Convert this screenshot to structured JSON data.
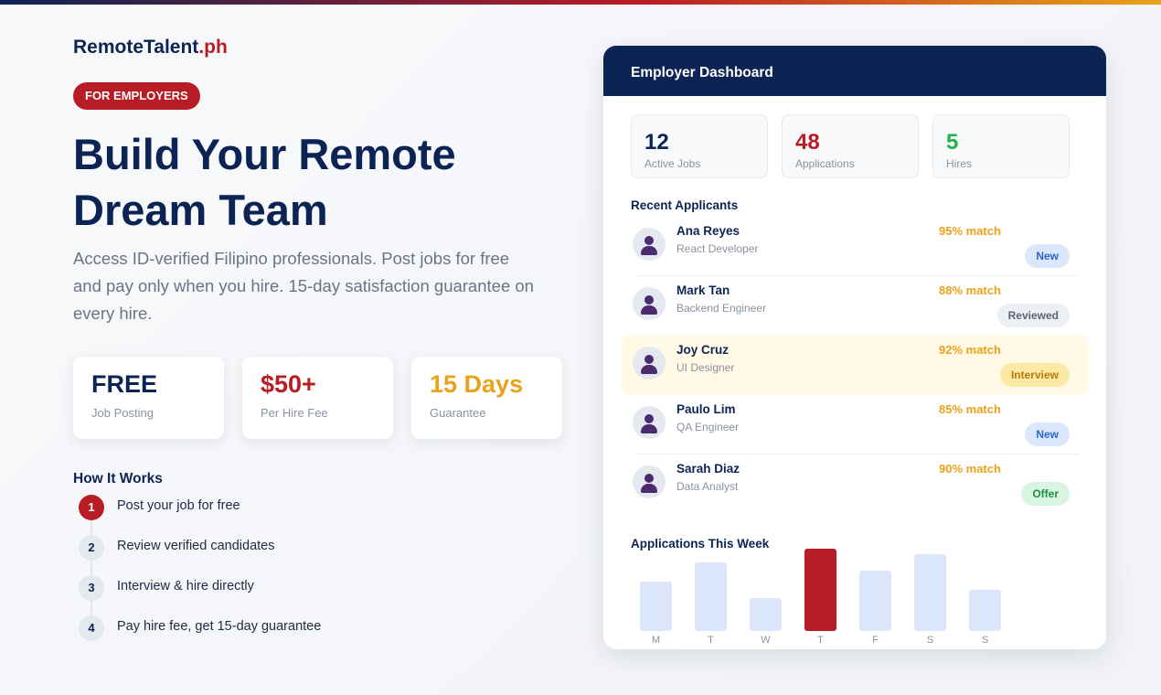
{
  "brand": {
    "name": "RemoteTalent",
    "suffix": ".ph"
  },
  "badge": "FOR EMPLOYERS",
  "headline": "Build Your Remote Dream Team",
  "subtext": "Access ID-verified Filipino professionals. Post jobs for free and pay only when you hire. 15-day satisfaction guarantee on every hire.",
  "stats": [
    {
      "value": "FREE",
      "label": "Job Posting",
      "color": "#0c2454"
    },
    {
      "value": "$50+",
      "label": "Per Hire Fee",
      "color": "#b81c25"
    },
    {
      "value": "15 Days",
      "label": "Guarantee",
      "color": "#e9a21a"
    }
  ],
  "how_it_works": {
    "title": "How It Works",
    "steps": [
      {
        "num": "1",
        "text": "Post your job for free"
      },
      {
        "num": "2",
        "text": "Review verified candidates"
      },
      {
        "num": "3",
        "text": "Interview & hire directly"
      },
      {
        "num": "4",
        "text": "Pay hire fee, get 15-day guarantee"
      }
    ]
  },
  "dashboard": {
    "title": "Employer Dashboard",
    "metrics": [
      {
        "value": "12",
        "label": "Active Jobs",
        "color": "#0c2454"
      },
      {
        "value": "48",
        "label": "Applications",
        "color": "#b81c25"
      },
      {
        "value": "5",
        "label": "Hires",
        "color": "#22b24c"
      }
    ],
    "recent_title": "Recent Applicants",
    "applicants": [
      {
        "name": "Ana Reyes",
        "role": "React Developer",
        "match": "95% match",
        "status": "New",
        "status_bg": "#dbe7fc",
        "status_color": "#2d64c8"
      },
      {
        "name": "Mark Tan",
        "role": "Backend Engineer",
        "match": "88% match",
        "status": "Reviewed",
        "status_bg": "#eceff3",
        "status_color": "#5b6476"
      },
      {
        "name": "Joy Cruz",
        "role": "UI Designer",
        "match": "92% match",
        "status": "Interview",
        "status_bg": "#fde9a6",
        "status_color": "#b7790d"
      },
      {
        "name": "Paulo Lim",
        "role": "QA Engineer",
        "match": "85% match",
        "status": "New",
        "status_bg": "#dbe7fc",
        "status_color": "#2d64c8"
      },
      {
        "name": "Sarah Diaz",
        "role": "Data Analyst",
        "match": "90% match",
        "status": "Offer",
        "status_bg": "#d7f5df",
        "status_color": "#1f8f44"
      }
    ],
    "week_title": "Applications This Week",
    "week_values": [
      54,
      75,
      36,
      90,
      66,
      84,
      45
    ],
    "week_days": [
      "M",
      "T",
      "W",
      "T",
      "F",
      "S",
      "S"
    ]
  }
}
